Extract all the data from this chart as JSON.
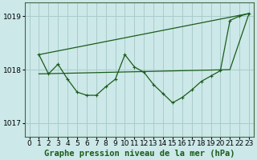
{
  "title": "Graphe pression niveau de la mer (hPa)",
  "bg_color": "#cce8e8",
  "grid_color": "#aacccc",
  "line_color": "#1a5c1a",
  "xlim": [
    -0.5,
    23.5
  ],
  "ylim": [
    1016.75,
    1019.25
  ],
  "yticks": [
    1017,
    1018,
    1019
  ],
  "xticks": [
    0,
    1,
    2,
    3,
    4,
    5,
    6,
    7,
    8,
    9,
    10,
    11,
    12,
    13,
    14,
    15,
    16,
    17,
    18,
    19,
    20,
    21,
    22,
    23
  ],
  "series1_x": [
    1,
    2,
    3,
    4,
    5,
    6,
    7,
    8,
    9,
    10,
    11,
    12,
    13,
    14,
    15,
    16,
    17,
    18,
    19,
    20,
    21,
    22,
    23
  ],
  "series1_y": [
    1018.28,
    1017.92,
    1018.1,
    1017.82,
    1017.58,
    1017.52,
    1017.52,
    1017.68,
    1017.82,
    1018.28,
    1018.05,
    1017.95,
    1017.72,
    1017.55,
    1017.38,
    1017.48,
    1017.62,
    1017.78,
    1017.88,
    1017.98,
    1018.92,
    1019.0,
    1019.05
  ],
  "trend1_x": [
    1,
    23
  ],
  "trend1_y": [
    1018.28,
    1019.05
  ],
  "trend2_x": [
    1,
    21,
    23
  ],
  "trend2_y": [
    1017.92,
    1018.0,
    1019.05
  ],
  "xlabel_fontsize": 7.5,
  "tick_fontsize": 6.5
}
